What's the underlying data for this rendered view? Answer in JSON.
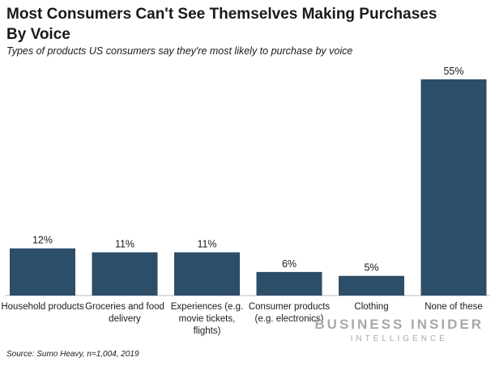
{
  "title": "Most Consumers Can't See Themselves Making Purchases By Voice",
  "subtitle": "Types of products US consumers say they're most likely to purchase by voice",
  "source": "Source: Sumo Heavy, n=1,004, 2019",
  "logo": {
    "line1": "BUSINESS INSIDER",
    "line2": "INTELLIGENCE"
  },
  "colors": {
    "bar": "#2d4e69",
    "axis": "#bdbdbd",
    "logo": "#a7a9ac"
  },
  "chart_data": {
    "type": "bar",
    "categories": [
      "Household products",
      "Groceries and food delivery",
      "Experiences (e.g. movie tickets, flights)",
      "Consumer products (e.g. electronics)",
      "Clothing",
      "None of these"
    ],
    "values": [
      12,
      11,
      11,
      6,
      5,
      55
    ],
    "value_labels": [
      "12%",
      "11%",
      "11%",
      "6%",
      "5%",
      "55%"
    ],
    "ylim": [
      0,
      55
    ],
    "grid": false,
    "legend": "none"
  }
}
